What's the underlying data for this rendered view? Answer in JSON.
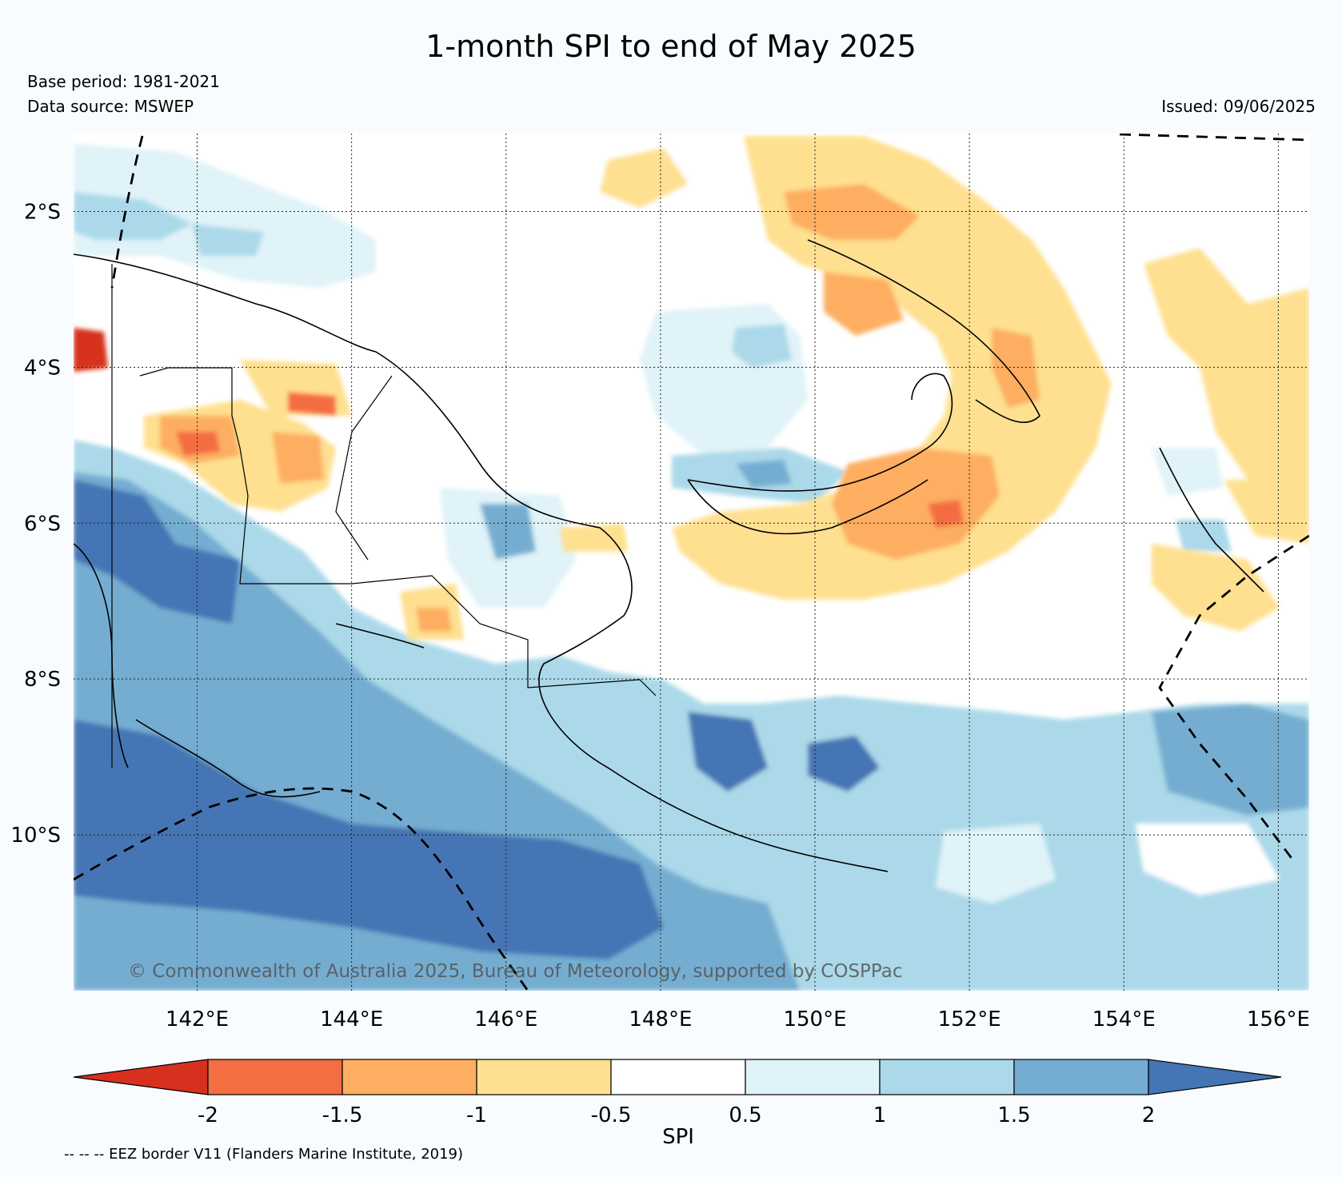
{
  "title": "1-month SPI to end of May 2025",
  "base_period": "Base period: 1981-2021",
  "data_source": "Data source: MSWEP",
  "issued": "Issued: 09/06/2025",
  "copyright": "© Commonwealth of Australia 2025, Bureau of Meteorology, supported by COSPPac",
  "footnote": "-- -- -- EEZ border V11 (Flanders Marine Institute, 2019)",
  "map": {
    "lon_range": [
      140.4,
      156.4
    ],
    "lat_range": [
      -12.0,
      -1.0
    ],
    "lon_ticks": [
      "142°E",
      "144°E",
      "146°E",
      "148°E",
      "150°E",
      "152°E",
      "154°E",
      "156°E"
    ],
    "lat_ticks": [
      "2°S",
      "4°S",
      "6°S",
      "8°S",
      "10°S"
    ],
    "gridlines": true
  },
  "colorbar": {
    "label": "SPI",
    "ticks": [
      "-2",
      "-1.5",
      "-1",
      "-0.5",
      "0.5",
      "1",
      "1.5",
      "2"
    ],
    "colors": [
      "#d7301f",
      "#f46d43",
      "#fdae61",
      "#fee090",
      "#ffffff",
      "#e0f3f8",
      "#abd9e9",
      "#74add1",
      "#4575b4"
    ]
  }
}
